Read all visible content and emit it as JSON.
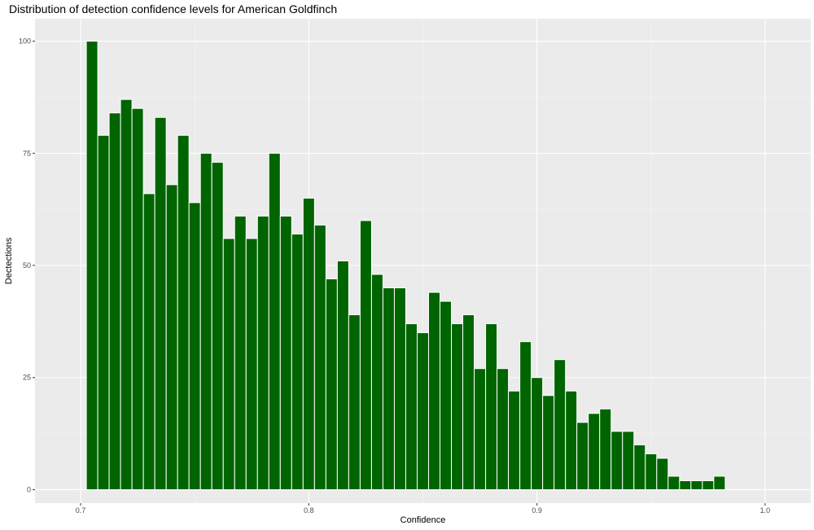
{
  "chart_data": {
    "type": "bar",
    "title": "Distribution of detection confidence levels for American Goldfinch",
    "xlabel": "Confidence",
    "ylabel": "Dectections",
    "xlim": [
      0.68,
      1.02
    ],
    "ylim": [
      -3,
      105
    ],
    "bin_width": 0.005,
    "x": [
      0.705,
      0.71,
      0.715,
      0.72,
      0.725,
      0.73,
      0.735,
      0.74,
      0.745,
      0.75,
      0.755,
      0.76,
      0.765,
      0.77,
      0.775,
      0.78,
      0.785,
      0.79,
      0.795,
      0.8,
      0.805,
      0.81,
      0.815,
      0.82,
      0.825,
      0.83,
      0.835,
      0.84,
      0.845,
      0.85,
      0.855,
      0.86,
      0.865,
      0.87,
      0.875,
      0.88,
      0.885,
      0.89,
      0.895,
      0.9,
      0.905,
      0.91,
      0.915,
      0.92,
      0.925,
      0.93,
      0.935,
      0.94,
      0.945,
      0.95,
      0.955,
      0.96,
      0.965,
      0.97,
      0.975,
      0.98
    ],
    "values": [
      100,
      79,
      84,
      87,
      85,
      66,
      83,
      68,
      79,
      64,
      75,
      73,
      56,
      61,
      56,
      61,
      75,
      61,
      57,
      65,
      59,
      47,
      51,
      39,
      60,
      48,
      45,
      45,
      37,
      35,
      44,
      42,
      37,
      39,
      27,
      37,
      27,
      22,
      33,
      25,
      21,
      29,
      22,
      15,
      17,
      18,
      13,
      13,
      10,
      8,
      7,
      3,
      2,
      2,
      2,
      3
    ],
    "x_ticks": [
      0.7,
      0.8,
      0.9,
      1.0
    ],
    "x_tick_labels": [
      "0.7",
      "0.8",
      "0.9",
      "1.0"
    ],
    "y_ticks": [
      0,
      25,
      50,
      75,
      100
    ],
    "y_tick_labels": [
      "0",
      "25",
      "50",
      "75",
      "100"
    ],
    "grid": true,
    "colors": {
      "bar_fill": "#006400",
      "bar_outline": "#ffffff",
      "panel": "#ebebeb",
      "grid_major": "#ffffff",
      "grid_minor": "#f5f5f5"
    }
  }
}
